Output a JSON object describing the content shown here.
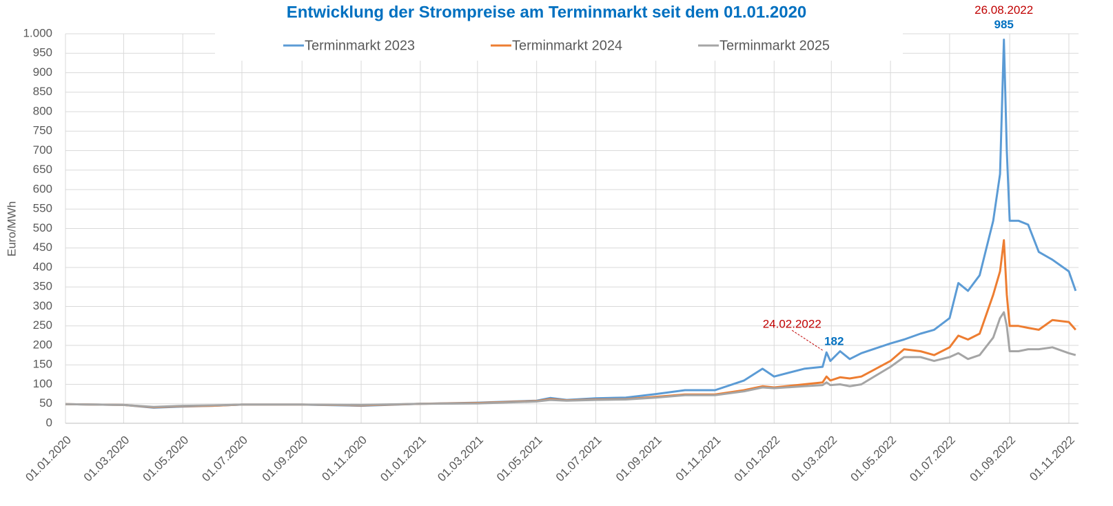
{
  "chart_data": {
    "type": "line",
    "title": "Entwicklung der Strompreise am Terminmarkt seit dem 01.01.2020",
    "y_label": "Euro/MWh",
    "x": [
      "01.01.2020",
      "01.02.2020",
      "01.03.2020",
      "01.04.2020",
      "01.05.2020",
      "01.06.2020",
      "01.07.2020",
      "01.09.2020",
      "01.11.2020",
      "01.01.2021",
      "01.03.2021",
      "01.05.2021",
      "15.05.2021",
      "01.06.2021",
      "01.07.2021",
      "01.08.2021",
      "01.09.2021",
      "01.10.2021",
      "01.11.2021",
      "01.12.2021",
      "20.12.2021",
      "01.01.2022",
      "01.02.2022",
      "20.02.2022",
      "24.02.2022",
      "28.02.2022",
      "10.03.2022",
      "20.03.2022",
      "01.04.2022",
      "01.05.2022",
      "15.05.2022",
      "01.06.2022",
      "15.06.2022",
      "01.07.2022",
      "10.07.2022",
      "20.07.2022",
      "01.08.2022",
      "15.08.2022",
      "22.08.2022",
      "26.08.2022",
      "29.08.2022",
      "01.09.2022",
      "10.09.2022",
      "20.09.2022",
      "01.10.2022",
      "15.10.2022",
      "01.11.2022",
      "08.11.2022"
    ],
    "series": [
      {
        "name": "Terminmarkt 2023",
        "color": "#5b9bd5",
        "values": [
          49,
          48,
          47,
          40,
          43,
          45,
          48,
          48,
          45,
          50,
          53,
          58,
          65,
          60,
          64,
          66,
          75,
          85,
          85,
          110,
          140,
          120,
          140,
          145,
          182,
          160,
          185,
          165,
          180,
          205,
          215,
          230,
          240,
          270,
          360,
          340,
          380,
          520,
          640,
          985,
          700,
          520,
          520,
          510,
          440,
          420,
          390,
          340
        ]
      },
      {
        "name": "Terminmarkt 2024",
        "color": "#ed7d31",
        "values": [
          49,
          48,
          47,
          41,
          44,
          45,
          48,
          48,
          46,
          50,
          52,
          57,
          62,
          59,
          61,
          62,
          68,
          74,
          74,
          85,
          95,
          92,
          100,
          105,
          120,
          110,
          118,
          115,
          120,
          160,
          190,
          185,
          175,
          195,
          225,
          215,
          230,
          330,
          390,
          470,
          330,
          250,
          250,
          245,
          240,
          265,
          260,
          240
        ]
      },
      {
        "name": "Terminmarkt 2025",
        "color": "#a5a5a5",
        "values": [
          49,
          48,
          47,
          42,
          45,
          46,
          48,
          48,
          47,
          50,
          51,
          56,
          60,
          58,
          60,
          61,
          66,
          72,
          72,
          82,
          92,
          90,
          95,
          98,
          105,
          98,
          100,
          95,
          100,
          145,
          170,
          170,
          160,
          170,
          180,
          165,
          175,
          220,
          270,
          285,
          250,
          185,
          185,
          190,
          190,
          195,
          180,
          175
        ]
      }
    ],
    "xlim": [
      "01.01.2020",
      "11.11.2022"
    ],
    "xticks": [
      "01.01.2020",
      "01.03.2020",
      "01.05.2020",
      "01.07.2020",
      "01.09.2020",
      "01.11.2020",
      "01.01.2021",
      "01.03.2021",
      "01.05.2021",
      "01.07.2021",
      "01.09.2021",
      "01.11.2021",
      "01.01.2022",
      "01.03.2022",
      "01.05.2022",
      "01.07.2022",
      "01.09.2022",
      "01.11.2022"
    ],
    "ylim": [
      0,
      1000
    ],
    "yticks": [
      0,
      50,
      100,
      150,
      200,
      250,
      300,
      350,
      400,
      450,
      500,
      550,
      600,
      650,
      700,
      750,
      800,
      850,
      900,
      950,
      {
        "value": 1000,
        "label": "1.000"
      }
    ],
    "grid": true,
    "legend": "top",
    "annotations": [
      {
        "date": "24.02.2022",
        "value": 182
      },
      {
        "date": "26.08.2022",
        "value": 985
      }
    ]
  }
}
